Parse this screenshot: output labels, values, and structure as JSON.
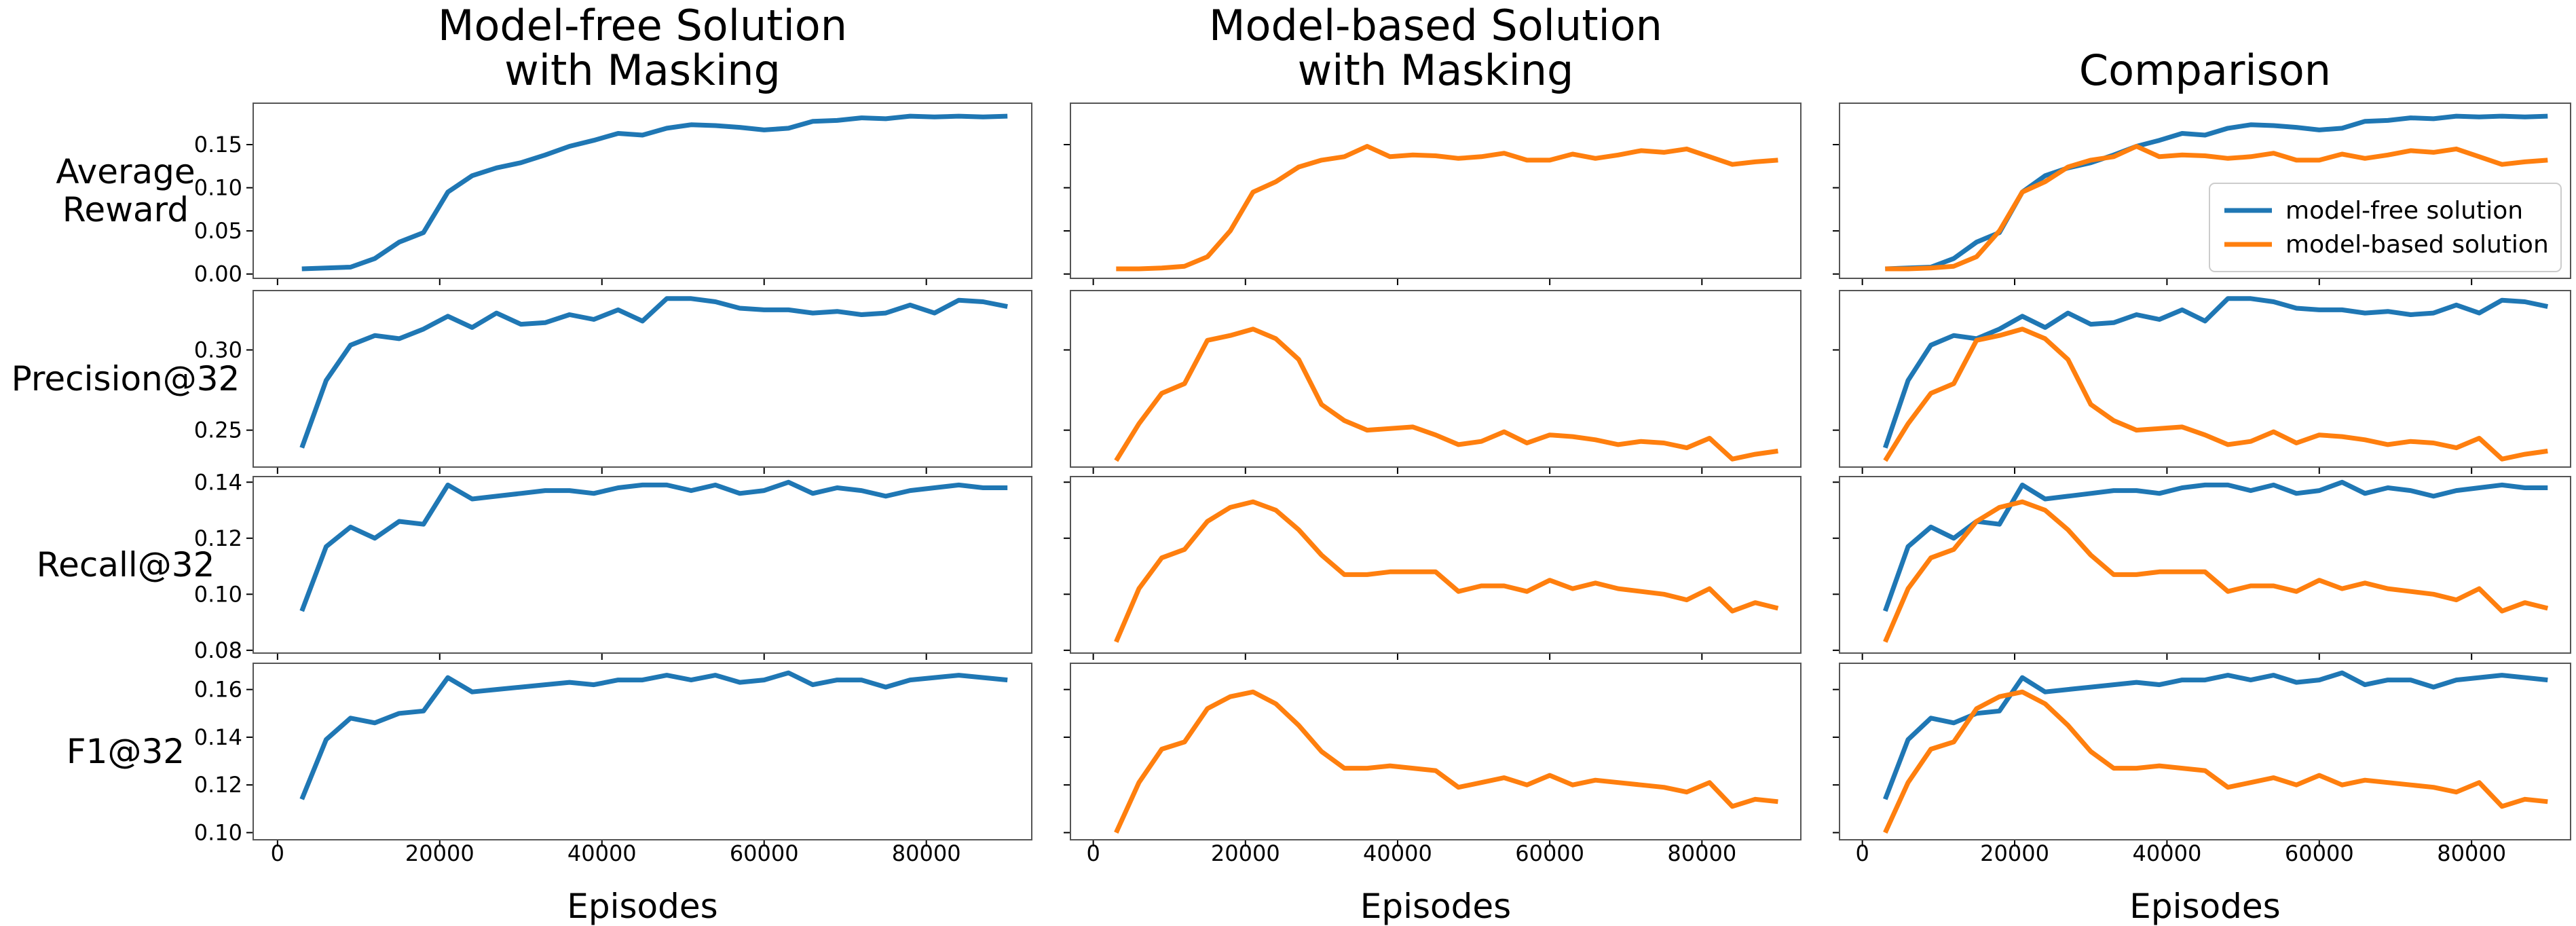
{
  "colors": {
    "model_free": "#1f77b4",
    "model_based": "#ff7f0e"
  },
  "column_titles": [
    [
      "Model-free Solution",
      "with Masking"
    ],
    [
      "Model-based Solution",
      "with Masking"
    ],
    [
      "Comparison"
    ]
  ],
  "legend": {
    "placement": "center-right of Comparison / Average Reward panel",
    "entries": [
      "model-free solution",
      "model-based solution"
    ]
  },
  "chart_data": {
    "type": "line",
    "xlabel": "Episodes",
    "xlim": [
      -3000,
      93000
    ],
    "xticks": [
      0,
      20000,
      40000,
      60000,
      80000
    ],
    "x": [
      3000,
      6000,
      9000,
      12000,
      15000,
      18000,
      21000,
      24000,
      27000,
      30000,
      33000,
      36000,
      39000,
      42000,
      45000,
      48000,
      51000,
      54000,
      57000,
      60000,
      63000,
      66000,
      69000,
      72000,
      75000,
      78000,
      81000,
      84000,
      87000,
      90000
    ],
    "grid": false,
    "metrics": [
      {
        "label": [
          "Average",
          "Reward"
        ],
        "ylim": [
          -0.005,
          0.198
        ],
        "yticks": [
          0.0,
          0.05,
          0.1,
          0.15
        ],
        "ytick_labels": [
          "0.00",
          "0.05",
          "0.10",
          "0.15"
        ],
        "model_free": [
          0.006,
          0.007,
          0.008,
          0.018,
          0.037,
          0.048,
          0.095,
          0.114,
          0.123,
          0.129,
          0.138,
          0.148,
          0.155,
          0.163,
          0.161,
          0.169,
          0.173,
          0.172,
          0.17,
          0.167,
          0.169,
          0.177,
          0.178,
          0.181,
          0.18,
          0.183,
          0.182,
          0.183,
          0.182,
          0.183
        ],
        "model_based": [
          0.006,
          0.006,
          0.007,
          0.009,
          0.02,
          0.05,
          0.095,
          0.107,
          0.124,
          0.132,
          0.136,
          0.148,
          0.136,
          0.138,
          0.137,
          0.134,
          0.136,
          0.14,
          0.132,
          0.132,
          0.139,
          0.134,
          0.138,
          0.143,
          0.141,
          0.145,
          0.136,
          0.127,
          0.13,
          0.132
        ]
      },
      {
        "label": [
          "Precision@32"
        ],
        "ylim": [
          0.227,
          0.337
        ],
        "yticks": [
          0.25,
          0.3
        ],
        "ytick_labels": [
          "0.25",
          "0.30"
        ],
        "model_free": [
          0.239,
          0.281,
          0.303,
          0.309,
          0.307,
          0.313,
          0.321,
          0.314,
          0.323,
          0.316,
          0.317,
          0.322,
          0.319,
          0.325,
          0.318,
          0.332,
          0.332,
          0.33,
          0.326,
          0.325,
          0.325,
          0.323,
          0.324,
          0.322,
          0.323,
          0.328,
          0.323,
          0.331,
          0.33,
          0.327
        ],
        "model_based": [
          0.231,
          0.254,
          0.273,
          0.279,
          0.306,
          0.309,
          0.313,
          0.307,
          0.294,
          0.266,
          0.256,
          0.25,
          0.251,
          0.252,
          0.247,
          0.241,
          0.243,
          0.249,
          0.242,
          0.247,
          0.246,
          0.244,
          0.241,
          0.243,
          0.242,
          0.239,
          0.245,
          0.232,
          0.235,
          0.237
        ]
      },
      {
        "label": [
          "Recall@32"
        ],
        "ylim": [
          0.079,
          0.142
        ],
        "yticks": [
          0.08,
          0.1,
          0.12,
          0.14
        ],
        "ytick_labels": [
          "0.08",
          "0.10",
          "0.12",
          "0.14"
        ],
        "model_free": [
          0.094,
          0.117,
          0.124,
          0.12,
          0.126,
          0.125,
          0.139,
          0.134,
          0.135,
          0.136,
          0.137,
          0.137,
          0.136,
          0.138,
          0.139,
          0.139,
          0.137,
          0.139,
          0.136,
          0.137,
          0.14,
          0.136,
          0.138,
          0.137,
          0.135,
          0.137,
          0.138,
          0.139,
          0.138,
          0.138
        ],
        "model_based": [
          0.083,
          0.102,
          0.113,
          0.116,
          0.126,
          0.131,
          0.133,
          0.13,
          0.123,
          0.114,
          0.107,
          0.107,
          0.108,
          0.108,
          0.108,
          0.101,
          0.103,
          0.103,
          0.101,
          0.105,
          0.102,
          0.104,
          0.102,
          0.101,
          0.1,
          0.098,
          0.102,
          0.094,
          0.097,
          0.095
        ]
      },
      {
        "label": [
          "F1@32"
        ],
        "ylim": [
          0.097,
          0.171
        ],
        "yticks": [
          0.1,
          0.12,
          0.14,
          0.16
        ],
        "ytick_labels": [
          "0.10",
          "0.12",
          "0.14",
          "0.16"
        ],
        "model_free": [
          0.114,
          0.139,
          0.148,
          0.146,
          0.15,
          0.151,
          0.165,
          0.159,
          0.16,
          0.161,
          0.162,
          0.163,
          0.162,
          0.164,
          0.164,
          0.166,
          0.164,
          0.166,
          0.163,
          0.164,
          0.167,
          0.162,
          0.164,
          0.164,
          0.161,
          0.164,
          0.165,
          0.166,
          0.165,
          0.164
        ],
        "model_based": [
          0.1,
          0.121,
          0.135,
          0.138,
          0.152,
          0.157,
          0.159,
          0.154,
          0.145,
          0.134,
          0.127,
          0.127,
          0.128,
          0.127,
          0.126,
          0.119,
          0.121,
          0.123,
          0.12,
          0.124,
          0.12,
          0.122,
          0.121,
          0.12,
          0.119,
          0.117,
          0.121,
          0.111,
          0.114,
          0.113
        ]
      }
    ]
  }
}
